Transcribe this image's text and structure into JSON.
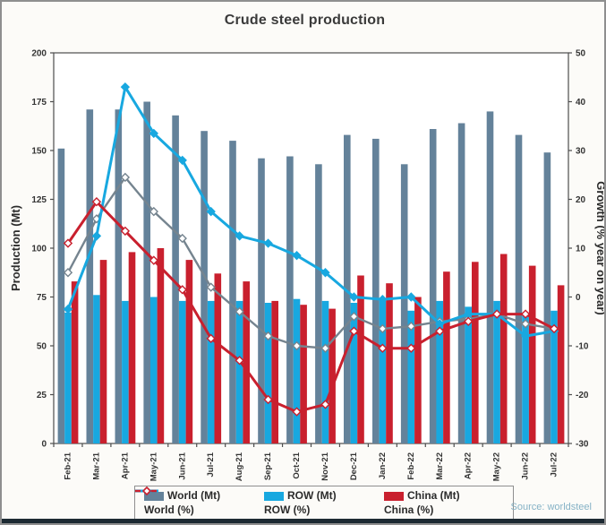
{
  "chart_data": {
    "type": "bar+line combo",
    "title": "Crude steel production",
    "source": "Source: worldsteel",
    "categories": [
      "Feb-21",
      "Mar-21",
      "Apr-21",
      "May-21",
      "Jun-21",
      "Jul-21",
      "Aug-21",
      "Sep-21",
      "Oct-21",
      "Nov-21",
      "Dec-21",
      "Jan-22",
      "Feb-22",
      "Mar-22",
      "Apr-22",
      "May-22",
      "Jun-22",
      "Jul-22"
    ],
    "left_axis": {
      "label": "Production (Mt)",
      "min": 0,
      "max": 200,
      "ticks": [
        200,
        175,
        150,
        125,
        100,
        75,
        50,
        25,
        0
      ]
    },
    "right_axis": {
      "label": "Growth (% year on year)",
      "min": -30,
      "max": 50,
      "ticks": [
        50,
        40,
        30,
        20,
        10,
        0,
        -10,
        -20,
        -30
      ]
    },
    "grid": "off",
    "legend_position": "bottom",
    "bar_series": [
      {
        "name": "World (Mt)",
        "color": "#64829a",
        "values": [
          151,
          171,
          171,
          175,
          168,
          160,
          155,
          146,
          147,
          143,
          158,
          156,
          143,
          161,
          164,
          170,
          158,
          149
        ]
      },
      {
        "name": "ROW (Mt)",
        "color": "#18a8e0",
        "values": [
          67,
          76,
          73,
          75,
          73,
          73,
          73,
          72,
          74,
          73,
          72,
          73,
          68,
          73,
          70,
          73,
          67,
          68
        ]
      },
      {
        "name": "China (Mt)",
        "color": "#c9202e",
        "values": [
          83,
          94,
          98,
          100,
          94,
          87,
          83,
          73,
          71,
          69,
          86,
          82,
          75,
          88,
          93,
          97,
          91,
          81
        ]
      }
    ],
    "line_series": [
      {
        "name": "World (%)",
        "color": "#75848f",
        "marker_fill": "#ffffff",
        "values": [
          5,
          16,
          24.5,
          17.5,
          12,
          2,
          -3,
          -8,
          -10,
          -10.5,
          -4,
          -6.5,
          -6,
          -5,
          -4.5,
          -3.5,
          -5.5,
          -6.5
        ]
      },
      {
        "name": "ROW (%)",
        "color": "#18a8e0",
        "marker_fill": "#18a8e0",
        "values": [
          -2.5,
          12.5,
          43,
          33.5,
          28,
          17.5,
          12.5,
          11,
          8.5,
          5,
          0,
          -0.5,
          0,
          -5.5,
          -3.5,
          -3.5,
          -8,
          -7
        ]
      },
      {
        "name": "China (%)",
        "color": "#c9202e",
        "marker_fill": "#ffffff",
        "values": [
          11,
          19.5,
          13.5,
          7.5,
          1.5,
          -8.5,
          -13,
          -21,
          -23.5,
          -22,
          -7,
          -10.5,
          -10.5,
          -7,
          -5,
          -3.5,
          -3.5,
          -6.5
        ]
      }
    ]
  }
}
